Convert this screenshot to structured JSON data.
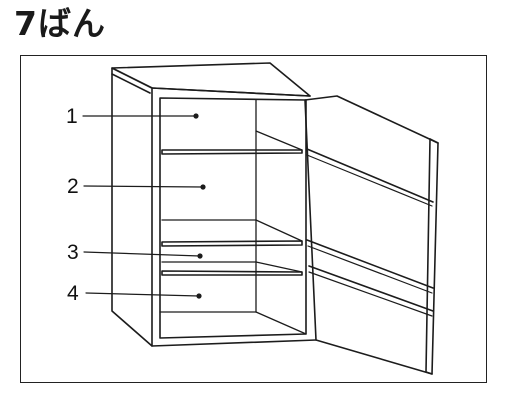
{
  "title": "7ばん",
  "labels": [
    "1",
    "2",
    "3",
    "4"
  ]
}
